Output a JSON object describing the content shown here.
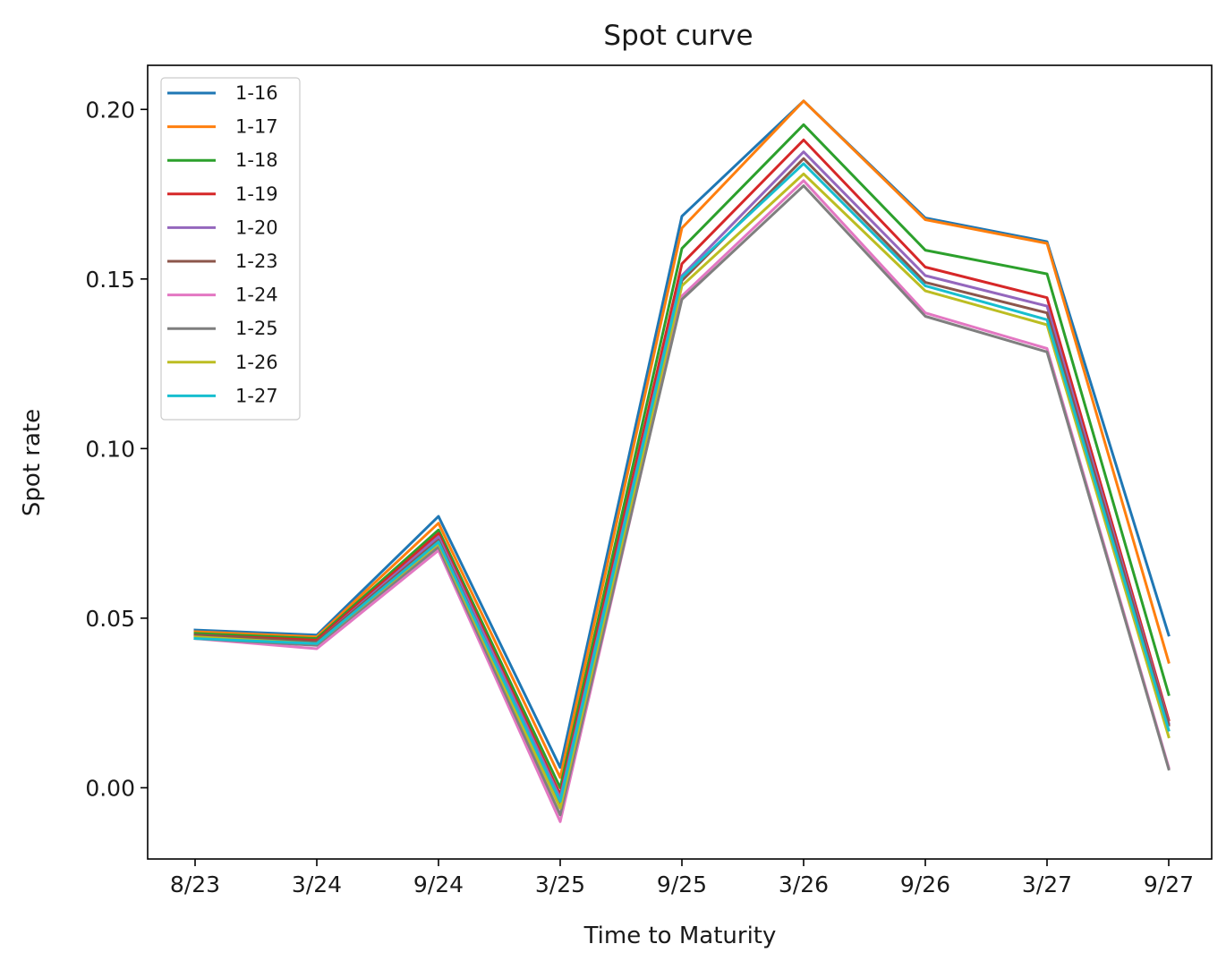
{
  "chart_data": {
    "type": "line",
    "title": "Spot curve",
    "xlabel": "Time to Maturity",
    "ylabel": "Spot rate",
    "categories": [
      "8/23",
      "3/24",
      "9/24",
      "3/25",
      "9/25",
      "3/26",
      "9/26",
      "3/27",
      "9/27"
    ],
    "ylim": [
      -0.021,
      0.213
    ],
    "yticks": [
      "0.00",
      "0.05",
      "0.10",
      "0.15",
      "0.20"
    ],
    "ytick_values": [
      0.0,
      0.05,
      0.1,
      0.15,
      0.2
    ],
    "grid": false,
    "legend_position": "top-left",
    "series": [
      {
        "name": "1-16",
        "color": "#1f77b4",
        "values": [
          0.0465,
          0.045,
          0.08,
          0.006,
          0.1685,
          0.2025,
          0.168,
          0.161,
          0.045
        ]
      },
      {
        "name": "1-17",
        "color": "#ff7f0e",
        "values": [
          0.046,
          0.0445,
          0.078,
          0.003,
          0.165,
          0.2025,
          0.1675,
          0.1605,
          0.037
        ]
      },
      {
        "name": "1-18",
        "color": "#2ca02c",
        "values": [
          0.0455,
          0.044,
          0.076,
          0.0,
          0.159,
          0.1955,
          0.1585,
          0.1515,
          0.0275
        ]
      },
      {
        "name": "1-19",
        "color": "#d62728",
        "values": [
          0.045,
          0.0435,
          0.075,
          -0.002,
          0.1545,
          0.191,
          0.1535,
          0.1445,
          0.02
        ]
      },
      {
        "name": "1-20",
        "color": "#9467bd",
        "values": [
          0.0445,
          0.043,
          0.074,
          -0.003,
          0.151,
          0.1875,
          0.151,
          0.142,
          0.019
        ]
      },
      {
        "name": "1-23",
        "color": "#8c564b",
        "values": [
          0.045,
          0.043,
          0.073,
          -0.0045,
          0.1495,
          0.1855,
          0.149,
          0.14,
          0.0185
        ]
      },
      {
        "name": "1-24",
        "color": "#e377c2",
        "values": [
          0.044,
          0.041,
          0.07,
          -0.01,
          0.145,
          0.179,
          0.14,
          0.1295,
          0.006
        ]
      },
      {
        "name": "1-25",
        "color": "#7f7f7f",
        "values": [
          0.044,
          0.042,
          0.071,
          -0.008,
          0.144,
          0.1775,
          0.139,
          0.1285,
          0.0055
        ]
      },
      {
        "name": "1-26",
        "color": "#bcbd22",
        "values": [
          0.0445,
          0.0425,
          0.072,
          -0.006,
          0.148,
          0.181,
          0.1465,
          0.1365,
          0.015
        ]
      },
      {
        "name": "1-27",
        "color": "#17becf",
        "values": [
          0.044,
          0.0425,
          0.0725,
          -0.004,
          0.1505,
          0.184,
          0.148,
          0.138,
          0.017
        ]
      }
    ]
  }
}
